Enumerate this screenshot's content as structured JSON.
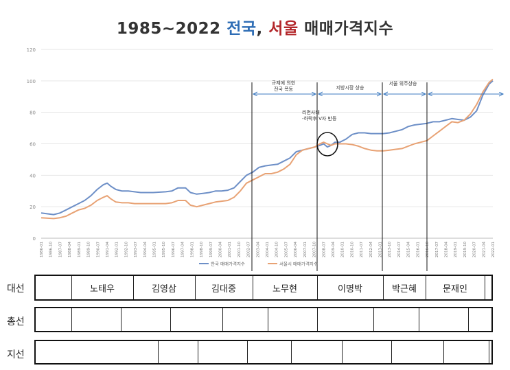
{
  "title": {
    "prefix": "1985~2022",
    "nation": "전국",
    "comma": ",",
    "seoul": "서울",
    "suffix": "매매가격지수"
  },
  "chart_data": {
    "type": "line",
    "xlabel": "",
    "ylabel": "",
    "ylim": [
      0,
      120
    ],
    "yticks": [
      0,
      20,
      40,
      60,
      80,
      100,
      120
    ],
    "grid": true,
    "legend_position": "bottom",
    "xticks": [
      "1986-01",
      "1986-10",
      "1987-07",
      "1988-04",
      "1989-01",
      "1989-10",
      "1990-07",
      "1991-04",
      "1992-01",
      "1992-10",
      "1993-07",
      "1994-04",
      "1995-01",
      "1995-10",
      "1996-07",
      "1997-04",
      "1998-01",
      "1998-10",
      "1999-07",
      "2000-04",
      "2001-01",
      "2001-10",
      "2002-07",
      "2003-04",
      "2004-01",
      "2004-10",
      "2005-07",
      "2006-04",
      "2007-01",
      "2007-10",
      "2008-07",
      "2009-04",
      "2010-01",
      "2010-10",
      "2011-07",
      "2012-04",
      "2013-01",
      "2013-10",
      "2014-07",
      "2015-04",
      "2016-01",
      "2016-10",
      "2017-07",
      "2018-04",
      "2019-01",
      "2019-10",
      "2020-07",
      "2021-04",
      "2022-01"
    ],
    "series": [
      {
        "name": "한국 매매가격지수",
        "color": "#6d8fc7",
        "x": [
          1986.0,
          1987.0,
          1987.5,
          1988.0,
          1988.5,
          1989.0,
          1989.5,
          1990.0,
          1990.5,
          1991.0,
          1991.3,
          1991.6,
          1992.0,
          1992.5,
          1993.0,
          1993.5,
          1994.0,
          1995.0,
          1996.0,
          1996.5,
          1997.0,
          1997.6,
          1998.0,
          1998.5,
          1999.0,
          1999.5,
          2000.0,
          2000.5,
          2001.0,
          2001.5,
          2002.0,
          2002.5,
          2003.0,
          2003.5,
          2004.0,
          2004.5,
          2005.0,
          2005.5,
          2006.0,
          2006.5,
          2007.0,
          2007.5,
          2008.0,
          2008.4,
          2008.7,
          2009.0,
          2009.3,
          2009.6,
          2010.0,
          2010.5,
          2011.0,
          2011.5,
          2012.0,
          2012.5,
          2013.0,
          2013.5,
          2014.0,
          2014.5,
          2015.0,
          2015.5,
          2016.0,
          2016.5,
          2017.0,
          2017.5,
          2018.0,
          2018.5,
          2019.0,
          2019.5,
          2020.0,
          2020.5,
          2021.0,
          2021.5,
          2022.0,
          2022.3
        ],
        "values": [
          16,
          15,
          16,
          18,
          20,
          22,
          24,
          27,
          31,
          34,
          35,
          33,
          31,
          30,
          30,
          29.5,
          29,
          29,
          29.5,
          30,
          32,
          32,
          29,
          28,
          28.5,
          29,
          30,
          30,
          30.5,
          32,
          36,
          40,
          42,
          45,
          46,
          46.5,
          47,
          49,
          51,
          55,
          56,
          57,
          58,
          59,
          60,
          58,
          59,
          61,
          61,
          63,
          66,
          67,
          67,
          66.5,
          66.5,
          66.5,
          67,
          68,
          69,
          71,
          72,
          72.5,
          73,
          74,
          74,
          75,
          76,
          75.5,
          75,
          77,
          81,
          91,
          98,
          100
        ]
      },
      {
        "name": "서울시 매매가격지수",
        "color": "#e8a274",
        "x": [
          1986.0,
          1987.0,
          1987.5,
          1988.0,
          1988.5,
          1989.0,
          1989.5,
          1990.0,
          1990.5,
          1991.0,
          1991.3,
          1991.6,
          1992.0,
          1992.5,
          1993.0,
          1993.5,
          1994.0,
          1995.0,
          1996.0,
          1996.5,
          1997.0,
          1997.6,
          1998.0,
          1998.5,
          1999.0,
          1999.5,
          2000.0,
          2000.5,
          2001.0,
          2001.5,
          2002.0,
          2002.5,
          2003.0,
          2003.5,
          2004.0,
          2004.5,
          2005.0,
          2005.5,
          2006.0,
          2006.5,
          2007.0,
          2007.5,
          2008.0,
          2008.4,
          2008.7,
          2009.0,
          2009.3,
          2009.6,
          2010.0,
          2010.5,
          2011.0,
          2011.5,
          2012.0,
          2012.5,
          2013.0,
          2013.5,
          2014.0,
          2014.5,
          2015.0,
          2015.5,
          2016.0,
          2016.5,
          2017.0,
          2017.5,
          2018.0,
          2018.5,
          2019.0,
          2019.5,
          2020.0,
          2020.5,
          2021.0,
          2021.5,
          2022.0,
          2022.3
        ],
        "values": [
          13,
          12.5,
          13,
          14,
          16,
          18,
          19,
          21,
          24,
          26,
          27,
          25,
          23,
          22.5,
          22.5,
          22,
          22,
          22,
          22,
          22.5,
          24,
          24,
          21,
          20,
          21,
          22,
          23,
          23.5,
          24,
          26,
          30,
          35,
          37,
          39,
          41,
          41,
          42,
          44,
          47,
          53,
          56,
          57,
          58,
          60,
          61,
          60,
          59,
          60,
          60,
          60,
          59.5,
          58.5,
          57,
          56,
          55.5,
          55.5,
          56,
          56.5,
          57,
          58.5,
          60,
          61,
          62,
          65,
          68,
          71,
          74,
          73.5,
          75,
          79,
          85,
          93,
          99,
          101
        ]
      }
    ],
    "annotations": [
      {
        "label_line1": "규제에 의한",
        "label_line2": "전국 폭등"
      },
      {
        "label_line1": "지방시장 상승"
      },
      {
        "label_line1": "서울 위주상승"
      },
      {
        "label_line1": "리먼사태",
        "label_line2": "-하락후 V자 반등"
      }
    ]
  },
  "rows": {
    "daeseon": {
      "label": "대선",
      "cells": [
        "",
        "노태우",
        "김영삼",
        "김대중",
        "노무현",
        "이명박",
        "박근혜",
        "문재인",
        ""
      ]
    },
    "chongseon": {
      "label": "총선",
      "cells": [
        "",
        "",
        "",
        "",
        "",
        "",
        "",
        "",
        "",
        ""
      ]
    },
    "jiseon": {
      "label": "지선",
      "cells": [
        "",
        "",
        "",
        "",
        "",
        "",
        "",
        "",
        ""
      ]
    }
  }
}
